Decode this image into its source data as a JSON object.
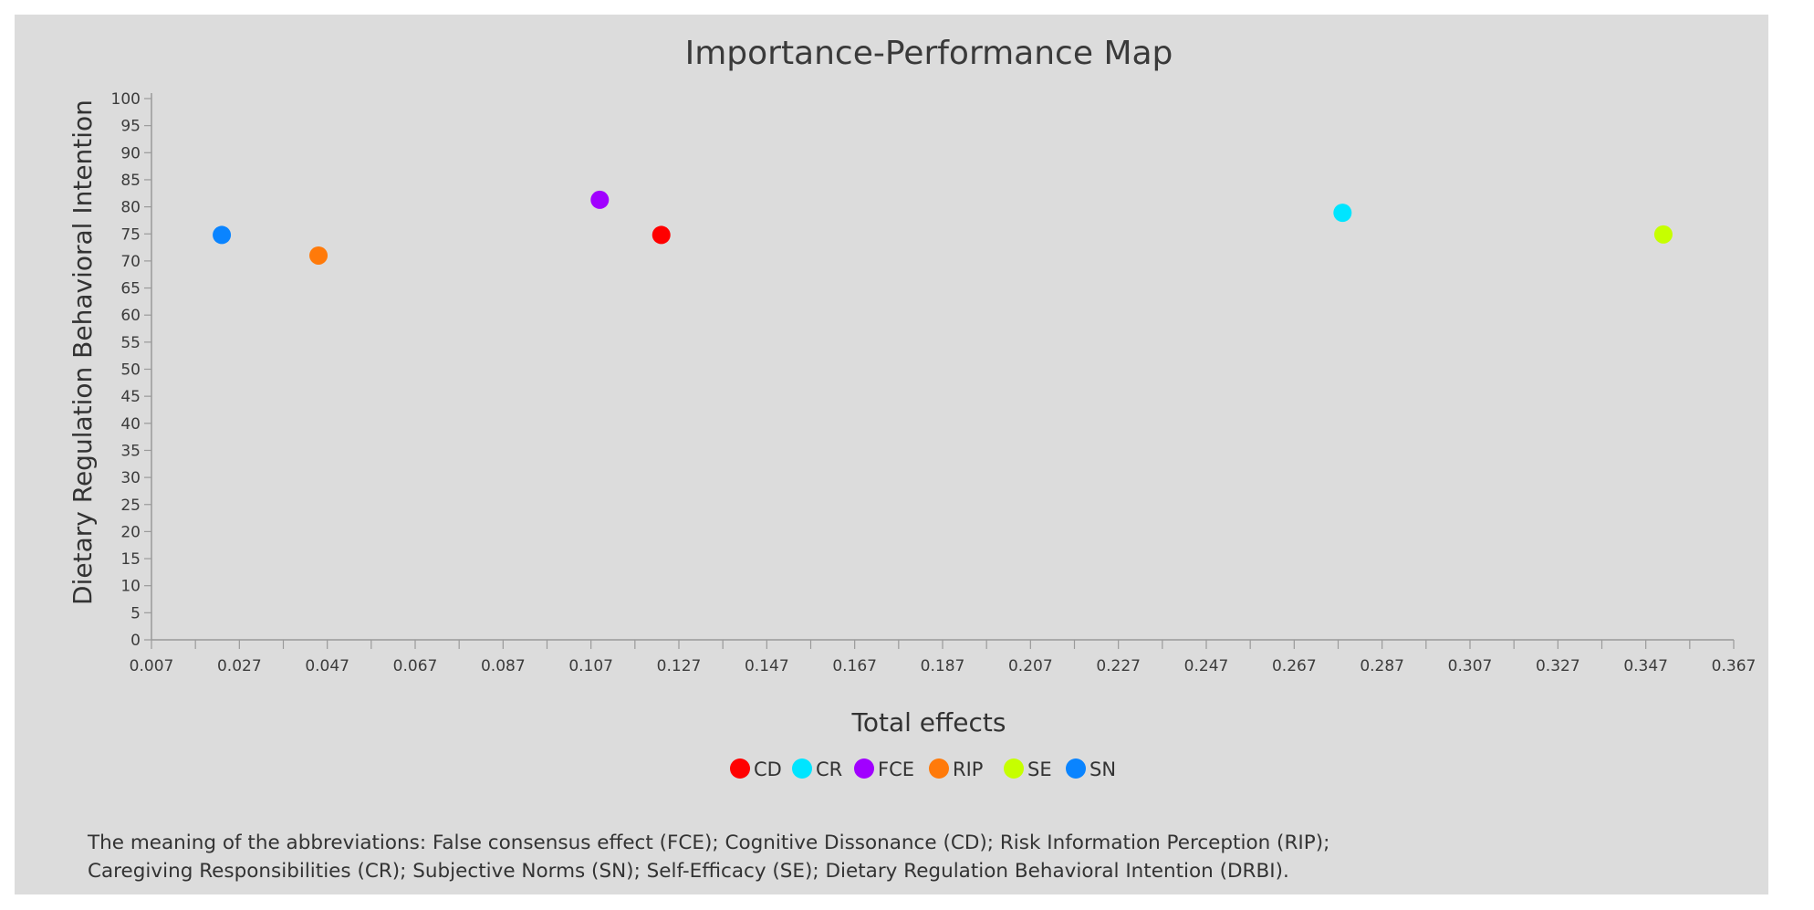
{
  "chart_data": {
    "type": "scatter",
    "title": "Importance-Performance Map",
    "xlabel": "Total effects",
    "ylabel": "Dietary Regulation Behavioral Intention",
    "xlim": [
      0.007,
      0.367
    ],
    "ylim": [
      0,
      100
    ],
    "x_ticks": [
      "0.007",
      "0.027",
      "0.047",
      "0.067",
      "0.087",
      "0.107",
      "0.127",
      "0.147",
      "0.167",
      "0.187",
      "0.207",
      "0.227",
      "0.247",
      "0.267",
      "0.287",
      "0.307",
      "0.327",
      "0.347",
      "0.367"
    ],
    "y_ticks": [
      "0",
      "5",
      "10",
      "15",
      "20",
      "25",
      "30",
      "35",
      "40",
      "45",
      "50",
      "55",
      "60",
      "65",
      "70",
      "75",
      "80",
      "85",
      "90",
      "95",
      "100"
    ],
    "grid": false,
    "legend_position": "bottom-center",
    "series": [
      {
        "name": "CD",
        "color": "#ff0000",
        "x": 0.123,
        "y": 74.8
      },
      {
        "name": "CR",
        "color": "#00e5ff",
        "x": 0.278,
        "y": 78.9
      },
      {
        "name": "FCE",
        "color": "#a100ff",
        "x": 0.109,
        "y": 81.3
      },
      {
        "name": "RIP",
        "color": "#ff7a0a",
        "x": 0.045,
        "y": 71.0
      },
      {
        "name": "SE",
        "color": "#c6ff00",
        "x": 0.351,
        "y": 74.9
      },
      {
        "name": "SN",
        "color": "#0a84ff",
        "x": 0.023,
        "y": 74.8
      }
    ]
  },
  "footnote": {
    "line1": "The meaning of the abbreviations: False consensus effect (FCE); Cognitive Dissonance (CD); Risk Information Perception (RIP);",
    "line2": "Caregiving Responsibilities (CR); Subjective Norms (SN); Self-Efficacy (SE); Dietary Regulation Behavioral Intention (DRBI)."
  }
}
